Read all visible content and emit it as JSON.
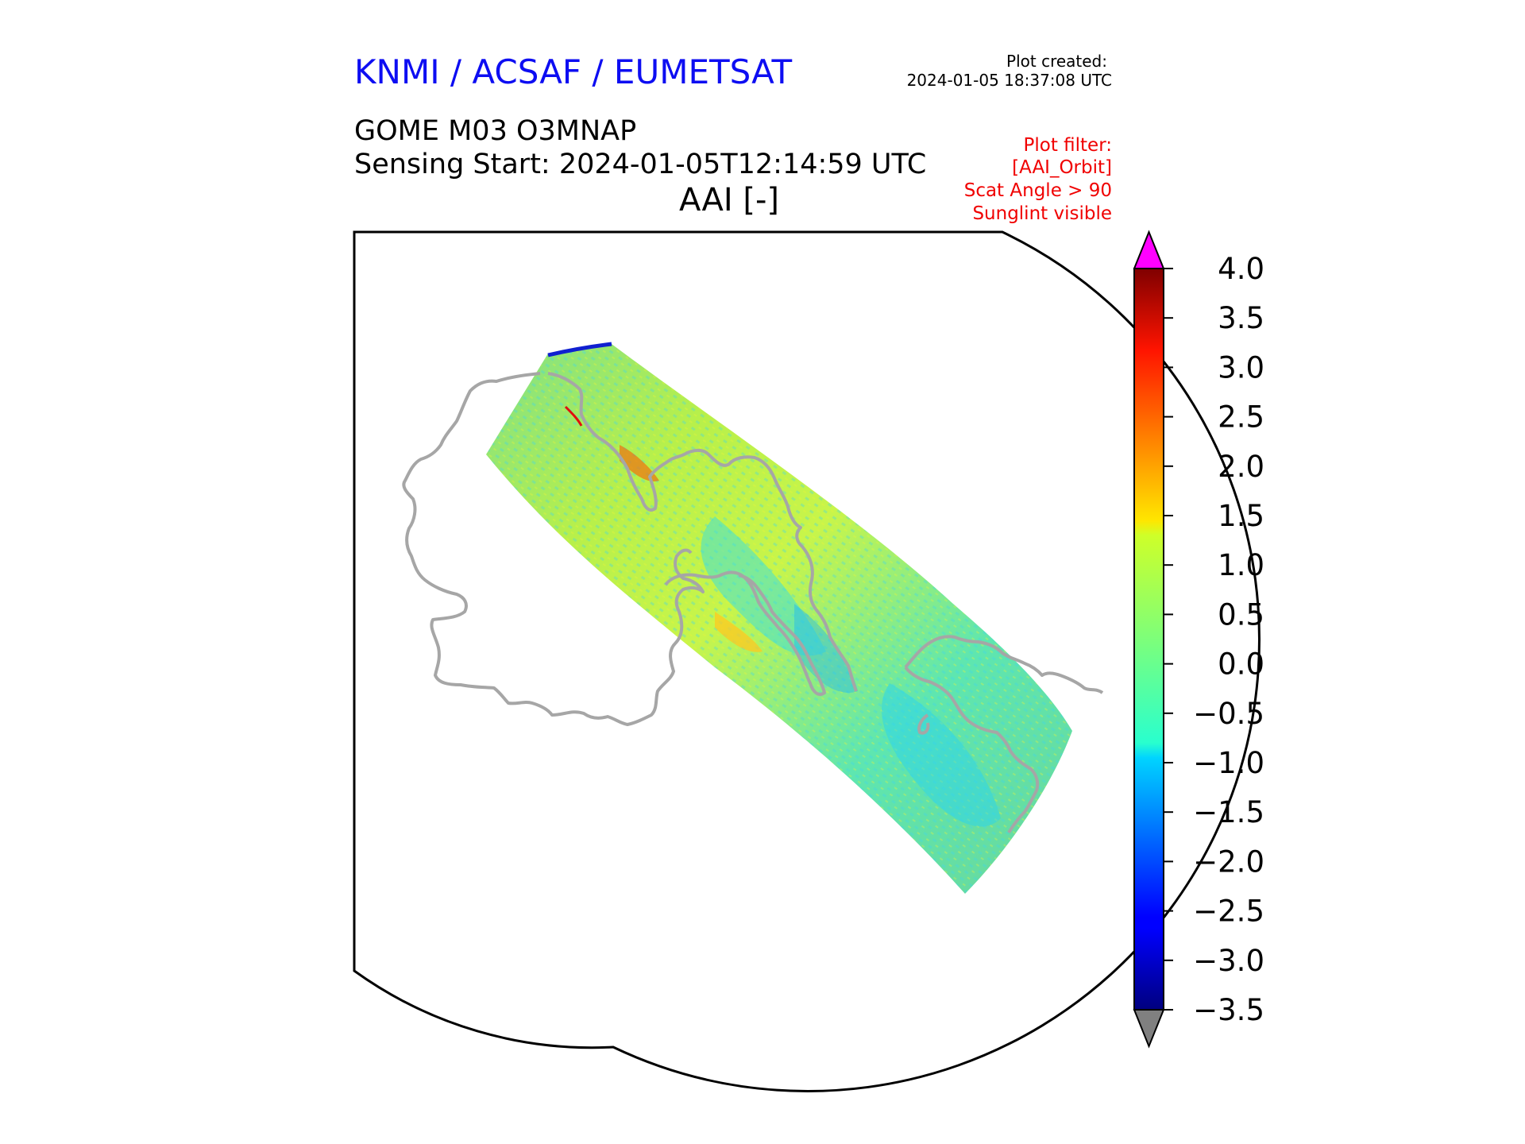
{
  "header": {
    "organization": "KNMI / ACSAF / EUMETSAT",
    "plot_created_label": "Plot created:",
    "plot_created_date": "2024-01-05 18:37:08 UTC",
    "product": "GOME M03 O3MNAP",
    "sensing_start": "Sensing Start: 2024-01-05T12:14:59 UTC",
    "variable_title": "AAI [-]"
  },
  "plot_filter": {
    "lines": [
      "Plot filter:",
      "[AAI_Orbit]",
      "Scat Angle > 90",
      "Sunglint visible"
    ]
  },
  "colorbar": {
    "min": -3.5,
    "max": 4.0,
    "ticks": [
      "4.0",
      "3.5",
      "3.0",
      "2.5",
      "2.0",
      "1.5",
      "1.0",
      "0.5",
      "0.0",
      "−0.5",
      "−1.0",
      "−1.5",
      "−2.0",
      "−2.5",
      "−3.0",
      "−3.5"
    ],
    "over_color": "#ff00ff",
    "under_color": "#808080",
    "colormap": "jet"
  },
  "map": {
    "projection": "polar stereographic (South Pole)",
    "coastline_color": "#a0a0a0",
    "swath_typical_range": [
      -1.0,
      1.5
    ]
  }
}
